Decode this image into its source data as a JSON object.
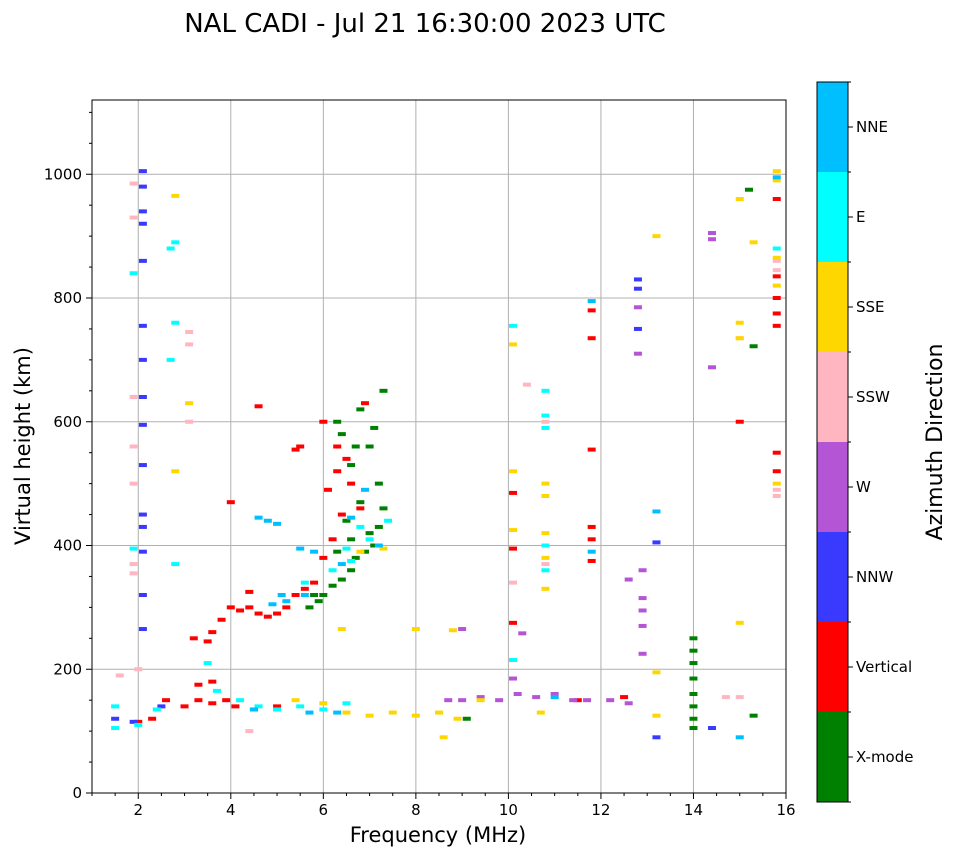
{
  "chart_data": {
    "type": "scatter",
    "title": "NAL CADI - Jul 21 16:30:00 2023 UTC",
    "xlabel": "Frequency (MHz)",
    "ylabel": "Virtual height (km)",
    "xlim": [
      1,
      16
    ],
    "ylim": [
      0,
      1120
    ],
    "xticks": [
      2,
      4,
      6,
      8,
      10,
      12,
      14,
      16
    ],
    "yticks": [
      0,
      200,
      400,
      600,
      800,
      1000
    ],
    "grid": true,
    "colorbar": {
      "title": "Azimuth Direction",
      "categories": [
        "X-mode",
        "Vertical",
        "NNW",
        "W",
        "SSW",
        "SSE",
        "E",
        "NNE"
      ],
      "colors": [
        "#008000",
        "#ff0000",
        "#3a3aff",
        "#b455d6",
        "#ffb6c1",
        "#ffd700",
        "#00ffff",
        "#00bfff"
      ]
    },
    "series": [
      {
        "name": "X-mode",
        "points": [
          [
            14.0,
            250
          ],
          [
            14.0,
            230
          ],
          [
            14.0,
            210
          ],
          [
            14.0,
            185
          ],
          [
            14.0,
            160
          ],
          [
            14.0,
            140
          ],
          [
            14.0,
            120
          ],
          [
            14.0,
            105
          ],
          [
            15.3,
            125
          ],
          [
            15.2,
            975
          ],
          [
            15.3,
            722
          ],
          [
            6.3,
            600
          ],
          [
            6.4,
            580
          ],
          [
            6.7,
            560
          ],
          [
            6.8,
            620
          ],
          [
            7.3,
            650
          ],
          [
            7.0,
            560
          ],
          [
            7.2,
            500
          ],
          [
            7.3,
            460
          ],
          [
            7.0,
            420
          ],
          [
            7.1,
            400
          ],
          [
            6.9,
            390
          ],
          [
            6.7,
            380
          ],
          [
            6.6,
            360
          ],
          [
            6.4,
            345
          ],
          [
            6.2,
            335
          ],
          [
            6.0,
            320
          ],
          [
            5.9,
            310
          ],
          [
            5.7,
            300
          ],
          [
            6.5,
            440
          ],
          [
            6.8,
            470
          ],
          [
            6.6,
            410
          ],
          [
            7.2,
            430
          ],
          [
            6.3,
            390
          ],
          [
            5.8,
            320
          ],
          [
            9.1,
            120
          ],
          [
            6.6,
            530
          ],
          [
            7.1,
            590
          ]
        ]
      },
      {
        "name": "Vertical",
        "points": [
          [
            3.0,
            140
          ],
          [
            3.3,
            150
          ],
          [
            3.6,
            145
          ],
          [
            3.3,
            175
          ],
          [
            3.6,
            180
          ],
          [
            3.2,
            250
          ],
          [
            3.5,
            245
          ],
          [
            3.6,
            260
          ],
          [
            3.8,
            280
          ],
          [
            4.0,
            300
          ],
          [
            4.2,
            295
          ],
          [
            4.4,
            300
          ],
          [
            4.6,
            290
          ],
          [
            4.8,
            285
          ],
          [
            5.0,
            290
          ],
          [
            5.2,
            300
          ],
          [
            5.4,
            320
          ],
          [
            5.6,
            330
          ],
          [
            5.8,
            340
          ],
          [
            6.0,
            380
          ],
          [
            6.2,
            410
          ],
          [
            6.4,
            450
          ],
          [
            6.1,
            490
          ],
          [
            6.3,
            520
          ],
          [
            6.5,
            540
          ],
          [
            6.0,
            600
          ],
          [
            6.3,
            560
          ],
          [
            6.8,
            460
          ],
          [
            6.6,
            500
          ],
          [
            4.0,
            470
          ],
          [
            4.6,
            625
          ],
          [
            5.5,
            560
          ],
          [
            4.1,
            140
          ],
          [
            4.5,
            135
          ],
          [
            5.0,
            140
          ],
          [
            3.9,
            150
          ],
          [
            2.0,
            115
          ],
          [
            2.3,
            120
          ],
          [
            2.6,
            150
          ],
          [
            10.1,
            275
          ],
          [
            10.1,
            395
          ],
          [
            10.1,
            485
          ],
          [
            11.8,
            430
          ],
          [
            11.8,
            410
          ],
          [
            11.8,
            555
          ],
          [
            11.8,
            735
          ],
          [
            11.8,
            780
          ],
          [
            11.8,
            375
          ],
          [
            11.5,
            150
          ],
          [
            12.5,
            155
          ],
          [
            15.0,
            600
          ],
          [
            15.8,
            550
          ],
          [
            15.8,
            520
          ],
          [
            15.8,
            800
          ],
          [
            15.8,
            835
          ],
          [
            15.8,
            775
          ],
          [
            15.8,
            755
          ],
          [
            15.8,
            960
          ],
          [
            6.9,
            630
          ],
          [
            5.4,
            555
          ],
          [
            4.4,
            325
          ]
        ]
      },
      {
        "name": "NNW",
        "points": [
          [
            2.1,
            1005
          ],
          [
            2.1,
            980
          ],
          [
            2.1,
            940
          ],
          [
            2.1,
            920
          ],
          [
            2.1,
            860
          ],
          [
            2.1,
            755
          ],
          [
            2.1,
            700
          ],
          [
            2.1,
            640
          ],
          [
            2.1,
            595
          ],
          [
            2.1,
            530
          ],
          [
            2.1,
            450
          ],
          [
            2.1,
            430
          ],
          [
            2.1,
            390
          ],
          [
            2.1,
            320
          ],
          [
            2.1,
            265
          ],
          [
            12.8,
            830
          ],
          [
            12.8,
            815
          ],
          [
            12.8,
            750
          ],
          [
            13.2,
            405
          ],
          [
            13.2,
            90
          ],
          [
            14.4,
            105
          ],
          [
            1.5,
            120
          ],
          [
            1.9,
            115
          ],
          [
            2.5,
            140
          ]
        ]
      },
      {
        "name": "W",
        "points": [
          [
            8.7,
            150
          ],
          [
            9.0,
            150
          ],
          [
            9.4,
            155
          ],
          [
            9.8,
            150
          ],
          [
            10.2,
            160
          ],
          [
            10.6,
            155
          ],
          [
            11.0,
            160
          ],
          [
            11.4,
            150
          ],
          [
            11.7,
            150
          ],
          [
            12.2,
            150
          ],
          [
            12.6,
            145
          ],
          [
            10.3,
            258
          ],
          [
            9.0,
            265
          ],
          [
            12.6,
            345
          ],
          [
            12.9,
            360
          ],
          [
            12.9,
            315
          ],
          [
            12.9,
            295
          ],
          [
            12.9,
            270
          ],
          [
            12.9,
            225
          ],
          [
            12.8,
            710
          ],
          [
            12.8,
            785
          ],
          [
            14.4,
            688
          ],
          [
            14.4,
            905
          ],
          [
            14.4,
            895
          ],
          [
            10.1,
            185
          ]
        ]
      },
      {
        "name": "SSW",
        "points": [
          [
            1.9,
            985
          ],
          [
            1.9,
            930
          ],
          [
            1.9,
            640
          ],
          [
            1.9,
            560
          ],
          [
            1.9,
            500
          ],
          [
            1.9,
            370
          ],
          [
            1.9,
            355
          ],
          [
            3.1,
            745
          ],
          [
            3.1,
            725
          ],
          [
            3.1,
            600
          ],
          [
            10.1,
            340
          ],
          [
            10.4,
            660
          ],
          [
            10.8,
            600
          ],
          [
            15.0,
            735
          ],
          [
            15.0,
            155
          ],
          [
            14.7,
            155
          ],
          [
            15.8,
            860
          ],
          [
            15.8,
            845
          ],
          [
            15.8,
            480
          ],
          [
            15.8,
            490
          ],
          [
            4.4,
            100
          ],
          [
            1.6,
            190
          ],
          [
            2.0,
            200
          ],
          [
            10.8,
            370
          ]
        ]
      },
      {
        "name": "SSE",
        "points": [
          [
            2.8,
            965
          ],
          [
            2.8,
            520
          ],
          [
            3.1,
            630
          ],
          [
            6.4,
            265
          ],
          [
            8.8,
            263
          ],
          [
            8.0,
            265
          ],
          [
            10.8,
            500
          ],
          [
            10.8,
            480
          ],
          [
            10.8,
            420
          ],
          [
            10.8,
            380
          ],
          [
            10.8,
            330
          ],
          [
            10.1,
            520
          ],
          [
            10.1,
            425
          ],
          [
            10.1,
            725
          ],
          [
            13.2,
            900
          ],
          [
            13.2,
            195
          ],
          [
            13.2,
            125
          ],
          [
            15.0,
            760
          ],
          [
            15.0,
            735
          ],
          [
            15.0,
            960
          ],
          [
            15.0,
            275
          ],
          [
            15.3,
            890
          ],
          [
            15.8,
            1005
          ],
          [
            15.8,
            990
          ],
          [
            15.8,
            865
          ],
          [
            15.8,
            820
          ],
          [
            15.8,
            500
          ],
          [
            6.5,
            130
          ],
          [
            7.0,
            125
          ],
          [
            7.5,
            130
          ],
          [
            8.0,
            125
          ],
          [
            8.5,
            130
          ],
          [
            8.9,
            120
          ],
          [
            9.4,
            150
          ],
          [
            6.8,
            390
          ],
          [
            7.3,
            395
          ],
          [
            6.0,
            145
          ],
          [
            5.4,
            150
          ],
          [
            8.6,
            90
          ],
          [
            10.7,
            130
          ]
        ]
      },
      {
        "name": "E",
        "points": [
          [
            1.5,
            105
          ],
          [
            1.5,
            140
          ],
          [
            2.0,
            110
          ],
          [
            2.4,
            135
          ],
          [
            3.5,
            210
          ],
          [
            2.8,
            760
          ],
          [
            2.7,
            700
          ],
          [
            2.8,
            890
          ],
          [
            2.7,
            880
          ],
          [
            1.9,
            840
          ],
          [
            1.9,
            395
          ],
          [
            10.1,
            755
          ],
          [
            10.1,
            215
          ],
          [
            10.8,
            650
          ],
          [
            10.8,
            610
          ],
          [
            10.8,
            590
          ],
          [
            10.8,
            400
          ],
          [
            10.8,
            360
          ],
          [
            15.8,
            880
          ],
          [
            5.0,
            135
          ],
          [
            5.5,
            140
          ],
          [
            6.0,
            135
          ],
          [
            6.5,
            145
          ],
          [
            4.6,
            140
          ],
          [
            4.2,
            150
          ],
          [
            3.7,
            165
          ],
          [
            7.0,
            410
          ],
          [
            7.4,
            440
          ],
          [
            6.8,
            430
          ],
          [
            6.5,
            395
          ],
          [
            6.2,
            360
          ],
          [
            6.6,
            375
          ],
          [
            5.6,
            340
          ],
          [
            2.8,
            370
          ]
        ]
      },
      {
        "name": "NNE",
        "points": [
          [
            4.6,
            445
          ],
          [
            4.8,
            440
          ],
          [
            5.0,
            435
          ],
          [
            5.5,
            395
          ],
          [
            5.8,
            390
          ],
          [
            6.6,
            445
          ],
          [
            6.9,
            490
          ],
          [
            7.2,
            400
          ],
          [
            6.4,
            370
          ],
          [
            5.6,
            320
          ],
          [
            5.2,
            310
          ],
          [
            4.9,
            305
          ],
          [
            13.2,
            455
          ],
          [
            15.0,
            90
          ],
          [
            15.8,
            995
          ],
          [
            11.8,
            390
          ],
          [
            11.8,
            795
          ],
          [
            4.5,
            135
          ],
          [
            5.7,
            130
          ],
          [
            6.3,
            130
          ],
          [
            11.0,
            155
          ],
          [
            5.1,
            320
          ]
        ]
      }
    ]
  }
}
